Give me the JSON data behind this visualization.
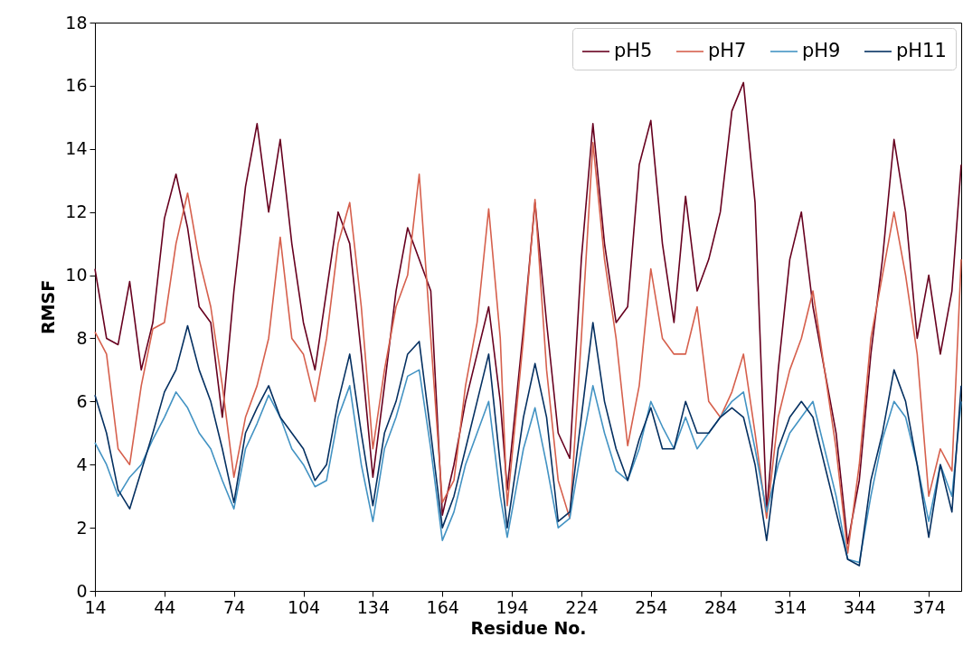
{
  "chart_data": {
    "type": "line",
    "xlabel": "Residue No.",
    "ylabel": "RMSF",
    "x": [
      14,
      19,
      24,
      29,
      34,
      39,
      44,
      49,
      54,
      59,
      64,
      69,
      74,
      79,
      84,
      89,
      94,
      99,
      104,
      109,
      114,
      119,
      124,
      129,
      134,
      139,
      144,
      149,
      154,
      159,
      164,
      169,
      174,
      179,
      184,
      189,
      192,
      199,
      204,
      209,
      214,
      219,
      224,
      229,
      234,
      239,
      244,
      249,
      254,
      259,
      264,
      269,
      274,
      279,
      284,
      289,
      294,
      299,
      304,
      309,
      314,
      319,
      324,
      329,
      334,
      339,
      344,
      349,
      354,
      359,
      364,
      369,
      374,
      379,
      384,
      388
    ],
    "series": [
      {
        "name": "pH5",
        "color": "#67001f",
        "values": [
          10.2,
          8.0,
          7.8,
          9.8,
          7.0,
          8.5,
          11.8,
          13.2,
          11.5,
          9.0,
          8.5,
          5.5,
          9.5,
          12.8,
          14.8,
          12.0,
          14.3,
          11.0,
          8.5,
          7.0,
          9.5,
          12.0,
          11.0,
          7.5,
          3.6,
          6.5,
          9.5,
          11.5,
          10.5,
          9.5,
          2.4,
          4.0,
          6.0,
          7.5,
          9.0,
          6.0,
          3.2,
          8.3,
          12.3,
          8.5,
          5.0,
          4.2,
          10.5,
          14.8,
          11.0,
          8.5,
          9.0,
          13.5,
          14.9,
          11.0,
          8.5,
          12.5,
          9.5,
          10.5,
          12.0,
          15.2,
          16.1,
          12.3,
          2.5,
          7.0,
          10.5,
          12.0,
          9.0,
          7.0,
          5.0,
          1.5,
          3.5,
          7.5,
          10.5,
          14.3,
          12.0,
          8.0,
          10.0,
          7.5,
          9.5,
          13.5
        ]
      },
      {
        "name": "pH7",
        "color": "#d6604d",
        "values": [
          8.2,
          7.5,
          4.5,
          4.0,
          6.5,
          8.3,
          8.5,
          11.0,
          12.6,
          10.5,
          9.0,
          6.5,
          3.6,
          5.5,
          6.5,
          8.0,
          11.2,
          8.0,
          7.5,
          6.0,
          8.0,
          11.0,
          12.3,
          9.0,
          4.5,
          7.0,
          9.0,
          10.0,
          13.2,
          8.0,
          2.8,
          3.5,
          6.5,
          8.5,
          12.1,
          8.0,
          2.7,
          8.0,
          12.4,
          7.0,
          3.5,
          2.3,
          8.0,
          14.2,
          10.5,
          8.0,
          4.6,
          6.5,
          10.2,
          8.0,
          7.5,
          7.5,
          9.0,
          6.0,
          5.5,
          6.3,
          7.5,
          5.0,
          2.3,
          5.5,
          7.0,
          8.0,
          9.5,
          7.0,
          4.5,
          1.2,
          4.0,
          8.0,
          10.0,
          12.0,
          10.0,
          7.5,
          3.0,
          4.5,
          3.8,
          10.5
        ]
      },
      {
        "name": "pH9",
        "color": "#4393c3",
        "values": [
          4.7,
          4.0,
          3.0,
          3.6,
          4.0,
          4.8,
          5.5,
          6.3,
          5.8,
          5.0,
          4.5,
          3.5,
          2.6,
          4.5,
          5.3,
          6.2,
          5.5,
          4.5,
          4.0,
          3.3,
          3.5,
          5.5,
          6.5,
          4.0,
          2.2,
          4.5,
          5.5,
          6.8,
          7.0,
          4.5,
          1.6,
          2.5,
          4.0,
          5.0,
          6.0,
          3.0,
          1.7,
          4.5,
          5.8,
          4.0,
          2.0,
          2.3,
          4.5,
          6.5,
          5.0,
          3.8,
          3.5,
          4.5,
          6.0,
          5.2,
          4.5,
          5.5,
          4.5,
          5.0,
          5.5,
          6.0,
          6.3,
          4.5,
          2.5,
          4.0,
          5.0,
          5.5,
          6.0,
          4.5,
          3.0,
          1.0,
          0.9,
          3.0,
          4.8,
          6.0,
          5.5,
          4.0,
          2.2,
          4.0,
          3.0,
          6.0
        ]
      },
      {
        "name": "pH11",
        "color": "#053061",
        "values": [
          6.2,
          5.0,
          3.2,
          2.6,
          3.8,
          5.0,
          6.3,
          7.0,
          8.4,
          7.0,
          6.0,
          4.5,
          2.8,
          5.0,
          5.8,
          6.5,
          5.5,
          5.0,
          4.5,
          3.5,
          4.0,
          6.0,
          7.5,
          5.0,
          2.7,
          5.0,
          6.0,
          7.5,
          7.9,
          5.0,
          2.0,
          3.0,
          4.5,
          6.0,
          7.5,
          4.0,
          2.0,
          5.5,
          7.2,
          5.5,
          2.2,
          2.5,
          5.5,
          8.5,
          6.0,
          4.5,
          3.5,
          4.8,
          5.8,
          4.5,
          4.5,
          6.0,
          5.0,
          5.0,
          5.5,
          5.8,
          5.5,
          4.0,
          1.6,
          4.5,
          5.5,
          6.0,
          5.5,
          4.0,
          2.5,
          1.0,
          0.8,
          3.5,
          5.0,
          7.0,
          6.0,
          4.0,
          1.7,
          4.0,
          2.5,
          6.5
        ]
      }
    ],
    "xlim": [
      14,
      388
    ],
    "xticks": [
      14,
      44,
      74,
      104,
      134,
      164,
      194,
      224,
      254,
      284,
      314,
      344,
      374
    ],
    "ylim": [
      0,
      18
    ],
    "yticks": [
      0,
      2,
      4,
      6,
      8,
      10,
      12,
      14,
      16,
      18
    ],
    "grid": false,
    "legend": "top right",
    "marker": "none",
    "line_style": "solid"
  }
}
